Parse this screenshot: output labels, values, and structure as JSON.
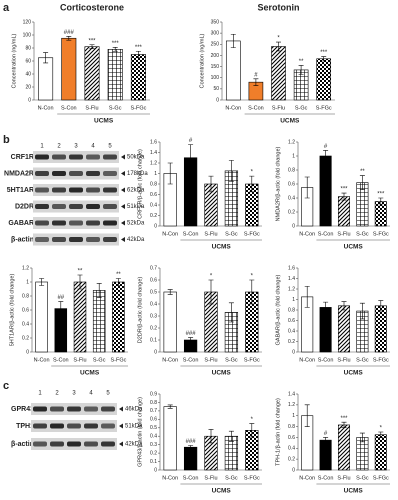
{
  "panel_labels": [
    "a",
    "b",
    "c"
  ],
  "blots": [
    {
      "lanes": [
        "1",
        "2",
        "3",
        "4",
        "5"
      ],
      "rows": [
        {
          "label": "CRF1R",
          "size": "50kDa"
        },
        {
          "label": "NMDA2R",
          "size": "178kDa"
        },
        {
          "label": "5HT1AR",
          "size": "62kDa"
        },
        {
          "label": "D2DR",
          "size": "51kDa"
        },
        {
          "label": "GABAR",
          "size": "52kDa"
        },
        {
          "label": "β-actin",
          "size": "42kDa"
        }
      ]
    },
    {
      "lanes": [
        "1",
        "2",
        "3",
        "4",
        "5"
      ],
      "rows": [
        {
          "label": "GPR43",
          "size": "46kDa"
        },
        {
          "label": "TPH1",
          "size": "51kDa"
        },
        {
          "label": "β-actin",
          "size": "42kDa"
        }
      ]
    }
  ],
  "chart_data": [
    {
      "type": "bar",
      "title": "Corticosterone",
      "ylabel": "Concentration (ng/mL)",
      "xlabel": "UCMS",
      "categories": [
        "N-Con",
        "S-Con",
        "S-Flu",
        "S-Gc",
        "S-FGc"
      ],
      "values": [
        65,
        95,
        82,
        78,
        70
      ],
      "errors": [
        8,
        3,
        3,
        3,
        5
      ],
      "annotations": [
        null,
        "###",
        "***",
        "***",
        "***"
      ],
      "ylim": [
        0,
        120
      ],
      "yticks": [
        0,
        20,
        40,
        60,
        80,
        100,
        120
      ],
      "patterns": [
        "solid",
        "solid",
        "diagonal",
        "grid",
        "checker"
      ],
      "colors": [
        "#ffffff",
        "#f07e2a",
        "#000000",
        "#000000",
        "#000000"
      ]
    },
    {
      "type": "bar",
      "title": "Serotonin",
      "ylabel": "Concentration (ng/mL)",
      "xlabel": "UCMS",
      "categories": [
        "N-Con",
        "S-Con",
        "S-Flu",
        "S-Gc",
        "S-FGc"
      ],
      "values": [
        265,
        80,
        240,
        135,
        185
      ],
      "errors": [
        30,
        15,
        20,
        20,
        10
      ],
      "annotations": [
        null,
        "#",
        "*",
        "**",
        "***"
      ],
      "ylim": [
        0,
        350
      ],
      "yticks": [
        0,
        50,
        100,
        150,
        200,
        250,
        300,
        350
      ],
      "patterns": [
        "solid",
        "solid",
        "diagonal",
        "grid",
        "checker"
      ],
      "colors": [
        "#ffffff",
        "#f07e2a",
        "#000000",
        "#000000",
        "#000000"
      ]
    },
    {
      "type": "bar",
      "ylabel": "CRF1R/β-actic (fold change)",
      "xlabel": "UCMS",
      "categories": [
        "N-Con",
        "S-Con",
        "S-Flu",
        "S-Gc",
        "S-FGc"
      ],
      "values": [
        1.0,
        1.3,
        0.8,
        1.05,
        0.8
      ],
      "errors": [
        0.2,
        0.25,
        0.15,
        0.2,
        0.15
      ],
      "annotations": [
        null,
        "#",
        null,
        null,
        "*"
      ],
      "ylim": [
        0,
        1.6
      ],
      "yticks": [
        0,
        0.2,
        0.4,
        0.6,
        0.8,
        1,
        1.2,
        1.4,
        1.6
      ],
      "patterns": [
        "solid",
        "solid",
        "diagonal",
        "grid",
        "checker"
      ],
      "colors": [
        "#ffffff",
        "#000000",
        "#000000",
        "#000000",
        "#000000"
      ]
    },
    {
      "type": "bar",
      "ylabel": "NMDA2R/β-actic (fold change)",
      "xlabel": "UCMS",
      "categories": [
        "N-Con",
        "S-Con",
        "S-Flu",
        "S-Gc",
        "S-FGc"
      ],
      "values": [
        0.55,
        1.0,
        0.42,
        0.62,
        0.35
      ],
      "errors": [
        0.15,
        0.08,
        0.05,
        0.1,
        0.05
      ],
      "annotations": [
        null,
        "#",
        "***",
        "**",
        "***"
      ],
      "ylim": [
        0,
        1.2
      ],
      "yticks": [
        0,
        0.2,
        0.4,
        0.6,
        0.8,
        1,
        1.2
      ],
      "patterns": [
        "solid",
        "solid",
        "diagonal",
        "grid",
        "checker"
      ],
      "colors": [
        "#ffffff",
        "#000000",
        "#000000",
        "#000000",
        "#000000"
      ]
    },
    {
      "type": "bar",
      "ylabel": "5HT1AR/β-actic (fold change)",
      "xlabel": "UCMS",
      "categories": [
        "N-Con",
        "S-Con",
        "S-Flu",
        "S-Gc",
        "S-FGc"
      ],
      "values": [
        1.0,
        0.62,
        1.0,
        0.88,
        1.0
      ],
      "errors": [
        0.05,
        0.1,
        0.1,
        0.1,
        0.05
      ],
      "annotations": [
        null,
        "##",
        "**",
        null,
        "**"
      ],
      "ylim": [
        0,
        1.2
      ],
      "yticks": [
        0,
        0.2,
        0.4,
        0.6,
        0.8,
        1,
        1.2
      ],
      "patterns": [
        "solid",
        "solid",
        "diagonal",
        "grid",
        "checker"
      ],
      "colors": [
        "#ffffff",
        "#000000",
        "#000000",
        "#000000",
        "#000000"
      ]
    },
    {
      "type": "bar",
      "ylabel": "D2DR/β-actic (fold change)",
      "xlabel": "UCMS",
      "categories": [
        "N-Con",
        "S-Con",
        "S-Flu",
        "S-Gc",
        "S-FGc"
      ],
      "values": [
        0.5,
        0.1,
        0.5,
        0.33,
        0.5
      ],
      "errors": [
        0.02,
        0.02,
        0.1,
        0.08,
        0.1
      ],
      "annotations": [
        null,
        "###",
        "*",
        null,
        "*"
      ],
      "ylim": [
        0,
        0.7
      ],
      "yticks": [
        0,
        0.1,
        0.2,
        0.3,
        0.4,
        0.5,
        0.6,
        0.7
      ],
      "patterns": [
        "solid",
        "solid",
        "diagonal",
        "grid",
        "checker"
      ],
      "colors": [
        "#ffffff",
        "#000000",
        "#000000",
        "#000000",
        "#000000"
      ]
    },
    {
      "type": "bar",
      "ylabel": "GABAR/β-actic (fold change)",
      "xlabel": "UCMS",
      "categories": [
        "N-Con",
        "S-Con",
        "S-Flu",
        "S-Gc",
        "S-FGc"
      ],
      "values": [
        1.05,
        0.85,
        0.88,
        0.78,
        0.88
      ],
      "errors": [
        0.2,
        0.1,
        0.08,
        0.15,
        0.1
      ],
      "annotations": [
        null,
        null,
        null,
        null,
        null
      ],
      "ylim": [
        0,
        1.6
      ],
      "yticks": [
        0,
        0.2,
        0.4,
        0.6,
        0.8,
        1,
        1.2,
        1.4,
        1.6
      ],
      "patterns": [
        "solid",
        "solid",
        "diagonal",
        "grid",
        "checker"
      ],
      "colors": [
        "#ffffff",
        "#000000",
        "#000000",
        "#000000",
        "#000000"
      ]
    },
    {
      "type": "bar",
      "ylabel": "GPR43/β-actin (fold change)",
      "xlabel": "UCMS",
      "categories": [
        "N-Con",
        "S-Con",
        "S-Flu",
        "S-Gc",
        "S-FGc"
      ],
      "values": [
        0.75,
        0.27,
        0.4,
        0.4,
        0.47
      ],
      "errors": [
        0.02,
        0.02,
        0.08,
        0.06,
        0.08
      ],
      "annotations": [
        null,
        "###",
        null,
        null,
        "*"
      ],
      "ylim": [
        0,
        0.9
      ],
      "yticks": [
        0,
        0.1,
        0.2,
        0.3,
        0.4,
        0.5,
        0.6,
        0.7,
        0.8,
        0.9
      ],
      "patterns": [
        "solid",
        "solid",
        "diagonal",
        "grid",
        "checker"
      ],
      "colors": [
        "#ffffff",
        "#000000",
        "#000000",
        "#000000",
        "#000000"
      ]
    },
    {
      "type": "bar",
      "ylabel": "TPH-1/β-actin (fold change)",
      "xlabel": "UCMS",
      "categories": [
        "N-Con",
        "S-Con",
        "S-Flu",
        "S-Gc",
        "S-FGc"
      ],
      "values": [
        1.0,
        0.55,
        0.83,
        0.6,
        0.65
      ],
      "errors": [
        0.2,
        0.05,
        0.05,
        0.08,
        0.05
      ],
      "annotations": [
        null,
        "#",
        "***",
        null,
        "*"
      ],
      "ylim": [
        0,
        1.4
      ],
      "yticks": [
        0,
        0.2,
        0.4,
        0.6,
        0.8,
        1,
        1.2,
        1.4
      ],
      "patterns": [
        "solid",
        "solid",
        "diagonal",
        "grid",
        "checker"
      ],
      "colors": [
        "#ffffff",
        "#000000",
        "#000000",
        "#000000",
        "#000000"
      ]
    }
  ]
}
